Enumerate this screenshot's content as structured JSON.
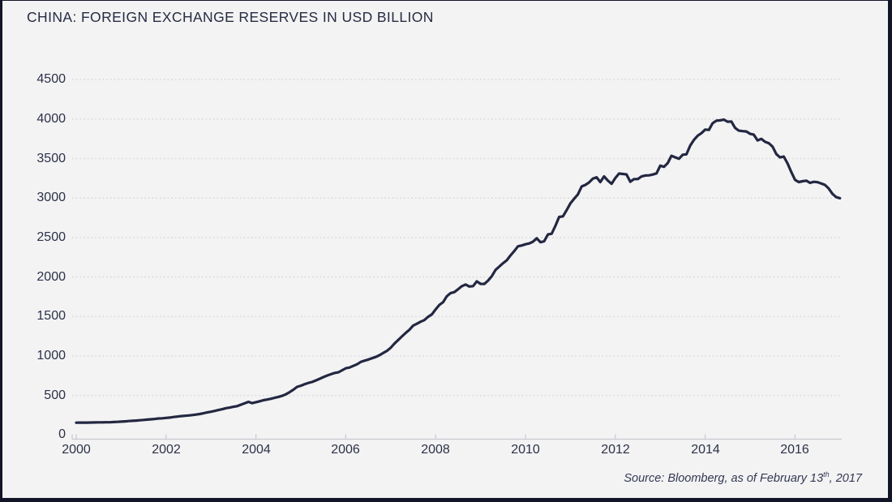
{
  "title": "CHINA: FOREIGN EXCHANGE RESERVES IN USD BILLION",
  "source": {
    "prefix": "Source: Bloomberg, as of February 13",
    "superscript": "th",
    "suffix": ", 2017"
  },
  "colors": {
    "background": "#f3f3f4",
    "frame_border": "#121527",
    "line": "#232741",
    "gridline": "#d9d9db",
    "axis": "#c9c9ce",
    "text": "#2c3146"
  },
  "chart_data": {
    "type": "line",
    "title": "CHINA: FOREIGN EXCHANGE RESERVES IN USD BILLION",
    "xlabel": "",
    "ylabel": "",
    "legend_position": "none",
    "grid": "horizontal dotted lines at each 500 step",
    "ylim": [
      0,
      4500
    ],
    "xlim": [
      2000,
      2017.1
    ],
    "yticks": [
      0,
      500,
      1000,
      1500,
      2000,
      2500,
      3000,
      3500,
      4000,
      4500
    ],
    "xticks": [
      2000,
      2002,
      2004,
      2006,
      2008,
      2010,
      2012,
      2014,
      2016
    ],
    "x_unit": "year (monthly observations)",
    "y_unit": "USD billion",
    "series": [
      {
        "name": "China foreign exchange reserves (USD billion)",
        "start": "2000-01",
        "end": "2017-01",
        "interval": "monthly",
        "values": [
          156,
          157,
          157,
          157,
          158,
          159,
          160,
          160,
          161,
          161,
          164,
          166,
          169,
          172,
          177,
          180,
          183,
          187,
          191,
          195,
          199,
          203,
          209,
          212,
          217,
          221,
          228,
          233,
          239,
          243,
          247,
          253,
          259,
          266,
          275,
          286,
          295,
          305,
          316,
          327,
          340,
          347,
          357,
          365,
          384,
          401,
          420,
          403,
          416,
          427,
          440,
          449,
          459,
          471,
          483,
          496,
          515,
          542,
          574,
          610,
          624,
          643,
          659,
          671,
          691,
          711,
          733,
          753,
          769,
          785,
          794,
          819,
          845,
          854,
          875,
          895,
          925,
          941,
          955,
          972,
          988,
          1010,
          1039,
          1066,
          1105,
          1157,
          1202,
          1247,
          1293,
          1333,
          1385,
          1409,
          1434,
          1455,
          1497,
          1528,
          1590,
          1647,
          1682,
          1757,
          1797,
          1809,
          1845,
          1884,
          1906,
          1880,
          1885,
          1946,
          1914,
          1912,
          1954,
          2009,
          2090,
          2132,
          2175,
          2211,
          2273,
          2328,
          2389,
          2399,
          2415,
          2425,
          2447,
          2491,
          2440,
          2454,
          2539,
          2548,
          2648,
          2761,
          2768,
          2847,
          2932,
          2991,
          3045,
          3147,
          3166,
          3198,
          3245,
          3263,
          3202,
          3274,
          3221,
          3181,
          3254,
          3310,
          3305,
          3299,
          3206,
          3240,
          3240,
          3273,
          3285,
          3287,
          3298,
          3312,
          3410,
          3395,
          3443,
          3535,
          3515,
          3497,
          3548,
          3553,
          3663,
          3737,
          3790,
          3821,
          3867,
          3862,
          3948,
          3979,
          3984,
          3993,
          3966,
          3969,
          3888,
          3853,
          3847,
          3843,
          3813,
          3802,
          3730,
          3748,
          3711,
          3694,
          3651,
          3557,
          3514,
          3526,
          3438,
          3330,
          3231,
          3202,
          3213,
          3220,
          3192,
          3205,
          3201,
          3185,
          3166,
          3121,
          3052,
          3011,
          2998
        ]
      }
    ]
  }
}
